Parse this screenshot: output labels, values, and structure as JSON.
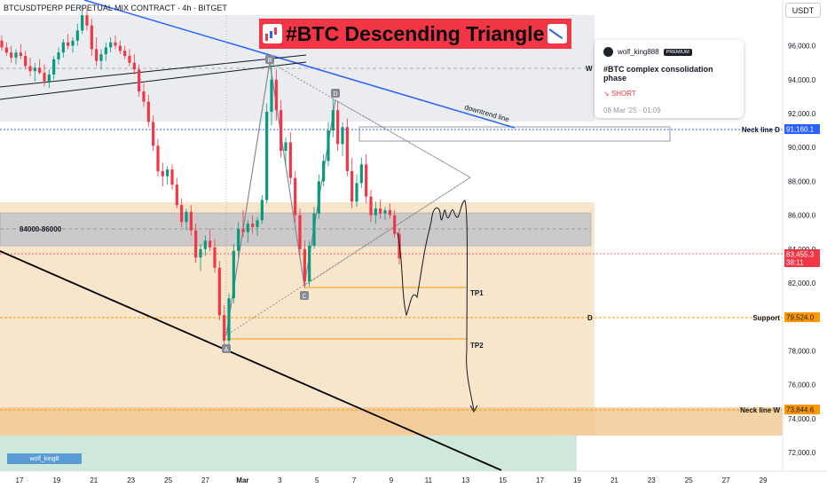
{
  "header": {
    "symbol": "BTCUSDTPERP PERPETUAL MIX CONTRACT · 4h · BITGET",
    "currency_button": "USDT"
  },
  "banner": {
    "title": "#BTC Descending Triangle"
  },
  "idea_card": {
    "author": "wolf_king888",
    "badge": "PREMIUM",
    "title": "#BTC complex consolidation phase",
    "direction": "SHORT",
    "date": "08 Mar '25 · 01:09"
  },
  "watermark": "wolf_king8",
  "colors": {
    "bear": "#f23645",
    "bull": "#089981",
    "accent_blue": "#2962ff",
    "zone_orange": "#f0c78e",
    "zone_gray": "#b8bcc8"
  },
  "chart_data": {
    "type": "candlestick",
    "timeframe": "4h",
    "x_ticks": [
      "17",
      "19",
      "21",
      "23",
      "25",
      "27",
      "Mar",
      "3",
      "5",
      "7",
      "9",
      "11",
      "13",
      "15",
      "17",
      "19",
      "21",
      "23",
      "25",
      "27",
      "29"
    ],
    "y_ticks": [
      96000,
      94000,
      92000,
      90000,
      88000,
      86000,
      84000,
      82000,
      80000,
      78000,
      76000,
      74000,
      72000
    ],
    "y_tick_labels": [
      "96,000.0",
      "94,000.0",
      "92,000.0",
      "90,000.0",
      "88,000.0",
      "86,000.0",
      "84,000.0",
      "82,000.0",
      "80,000.0",
      "78,000.0",
      "76,000.0",
      "74,000.0",
      "72,000.0"
    ],
    "ylim": [
      70900,
      98700
    ],
    "price_labels": [
      {
        "label": "Neck line D",
        "value": 91160.1,
        "text": "91,160.1",
        "color": "#2962ff"
      },
      {
        "label": "",
        "value": 83455.3,
        "text": "83,455.3",
        "sub": "38:11",
        "color": "#f23645"
      },
      {
        "label": "Support",
        "value": 79524.0,
        "text": "79,524.0",
        "color": "#ff9800"
      },
      {
        "label": "Neck line W",
        "value": 73844.6,
        "text": "73,844.6",
        "color": "#ff9800"
      }
    ],
    "zones": [
      {
        "label": "84000-86000",
        "from": 84000,
        "to": 86000
      },
      {
        "label": "",
        "from": 72300,
        "to": 86600
      }
    ],
    "pattern_points": [
      {
        "label": "A",
        "x_day": 26.7,
        "price": 78200
      },
      {
        "label": "B",
        "x_day": 3.0,
        "price": 95000
      },
      {
        "label": "C",
        "x_day": 4.9,
        "price": 81600
      },
      {
        "label": "D",
        "x_day": 6.9,
        "price": 92800
      }
    ],
    "targets": [
      {
        "label": "TP1",
        "price": 81450
      },
      {
        "label": "TP2",
        "price": 78200
      }
    ],
    "annotations": [
      "downtrend line",
      "W",
      "D"
    ],
    "ohlc": [
      [
        96300,
        96600,
        95700,
        95900
      ],
      [
        95900,
        96200,
        95400,
        95600
      ],
      [
        95600,
        96000,
        95000,
        95300
      ],
      [
        95300,
        95800,
        94900,
        95600
      ],
      [
        95600,
        96100,
        95200,
        95400
      ],
      [
        95400,
        95700,
        94600,
        94800
      ],
      [
        94800,
        95300,
        94200,
        94500
      ],
      [
        94500,
        95000,
        93900,
        94700
      ],
      [
        94700,
        95200,
        94300,
        94400
      ],
      [
        94400,
        94900,
        93600,
        93900
      ],
      [
        93900,
        94600,
        93500,
        94300
      ],
      [
        94300,
        95400,
        94000,
        95200
      ],
      [
        95200,
        95900,
        94900,
        95600
      ],
      [
        95600,
        96400,
        95300,
        96200
      ],
      [
        96200,
        96700,
        95800,
        96000
      ],
      [
        96000,
        96500,
        95600,
        96300
      ],
      [
        96300,
        97300,
        96000,
        96900
      ],
      [
        96900,
        98400,
        96700,
        97800
      ],
      [
        97800,
        98200,
        96900,
        97200
      ],
      [
        97200,
        97600,
        95400,
        95800
      ],
      [
        95800,
        96500,
        94800,
        95100
      ],
      [
        95100,
        95800,
        94600,
        95500
      ],
      [
        95500,
        96200,
        95100,
        95900
      ],
      [
        95900,
        96500,
        95600,
        96200
      ],
      [
        96200,
        96600,
        95800,
        96000
      ],
      [
        96000,
        96300,
        95500,
        95700
      ],
      [
        95700,
        96000,
        95200,
        95400
      ],
      [
        95400,
        95800,
        94800,
        95000
      ],
      [
        95000,
        95500,
        94300,
        94600
      ],
      [
        94600,
        94900,
        93000,
        93300
      ],
      [
        93300,
        93800,
        92400,
        92700
      ],
      [
        92700,
        93100,
        91200,
        91500
      ],
      [
        91500,
        91900,
        89800,
        90100
      ],
      [
        90100,
        90500,
        88300,
        88600
      ],
      [
        88600,
        89100,
        87700,
        88300
      ],
      [
        88300,
        88900,
        87800,
        88700
      ],
      [
        88700,
        89000,
        87500,
        87800
      ],
      [
        87800,
        88200,
        86400,
        86600
      ],
      [
        86600,
        87000,
        85300,
        85600
      ],
      [
        85600,
        86400,
        85100,
        86200
      ],
      [
        86200,
        86600,
        84800,
        85100
      ],
      [
        85100,
        85500,
        83200,
        83500
      ],
      [
        83500,
        84300,
        82700,
        84000
      ],
      [
        84000,
        84800,
        83600,
        84500
      ],
      [
        84500,
        85200,
        83900,
        84100
      ],
      [
        84100,
        84600,
        82600,
        82900
      ],
      [
        82900,
        83300,
        79800,
        80100
      ],
      [
        80100,
        80700,
        78300,
        78600
      ],
      [
        78600,
        81400,
        78300,
        81100
      ],
      [
        81100,
        84300,
        80800,
        83900
      ],
      [
        83900,
        85600,
        83500,
        85200
      ],
      [
        85200,
        86300,
        84700,
        85000
      ],
      [
        85000,
        85700,
        84400,
        85500
      ],
      [
        85500,
        86000,
        84900,
        85300
      ],
      [
        85300,
        85900,
        84800,
        85700
      ],
      [
        85700,
        87200,
        85500,
        86900
      ],
      [
        86900,
        92600,
        86700,
        92100
      ],
      [
        92100,
        94900,
        91300,
        94000
      ],
      [
        94000,
        94600,
        91600,
        92200
      ],
      [
        92200,
        92800,
        89400,
        89800
      ],
      [
        89800,
        90600,
        88900,
        90300
      ],
      [
        90300,
        90900,
        87800,
        88200
      ],
      [
        88200,
        88600,
        85600,
        86000
      ],
      [
        86000,
        86400,
        83600,
        84000
      ],
      [
        84000,
        84500,
        81700,
        82100
      ],
      [
        82100,
        84500,
        81800,
        84200
      ],
      [
        84200,
        86500,
        84000,
        86100
      ],
      [
        86100,
        88400,
        85800,
        88000
      ],
      [
        88000,
        89600,
        87700,
        89200
      ],
      [
        89200,
        91500,
        88900,
        91000
      ],
      [
        91000,
        92900,
        90600,
        92200
      ],
      [
        92200,
        92700,
        89800,
        90200
      ],
      [
        90200,
        91500,
        89500,
        91200
      ],
      [
        91200,
        91700,
        88300,
        88600
      ],
      [
        88600,
        89400,
        86400,
        86800
      ],
      [
        86800,
        88400,
        86500,
        87900
      ],
      [
        87900,
        89400,
        87600,
        89000
      ],
      [
        89000,
        89600,
        86700,
        87100
      ],
      [
        87100,
        87500,
        85600,
        86000
      ],
      [
        86000,
        86800,
        85500,
        86400
      ],
      [
        86400,
        86900,
        85800,
        86100
      ],
      [
        86100,
        86500,
        85700,
        86300
      ],
      [
        86300,
        86700,
        85800,
        86000
      ],
      [
        86000,
        86300,
        84700,
        84900
      ],
      [
        84900,
        85200,
        83100,
        83455
      ]
    ]
  }
}
